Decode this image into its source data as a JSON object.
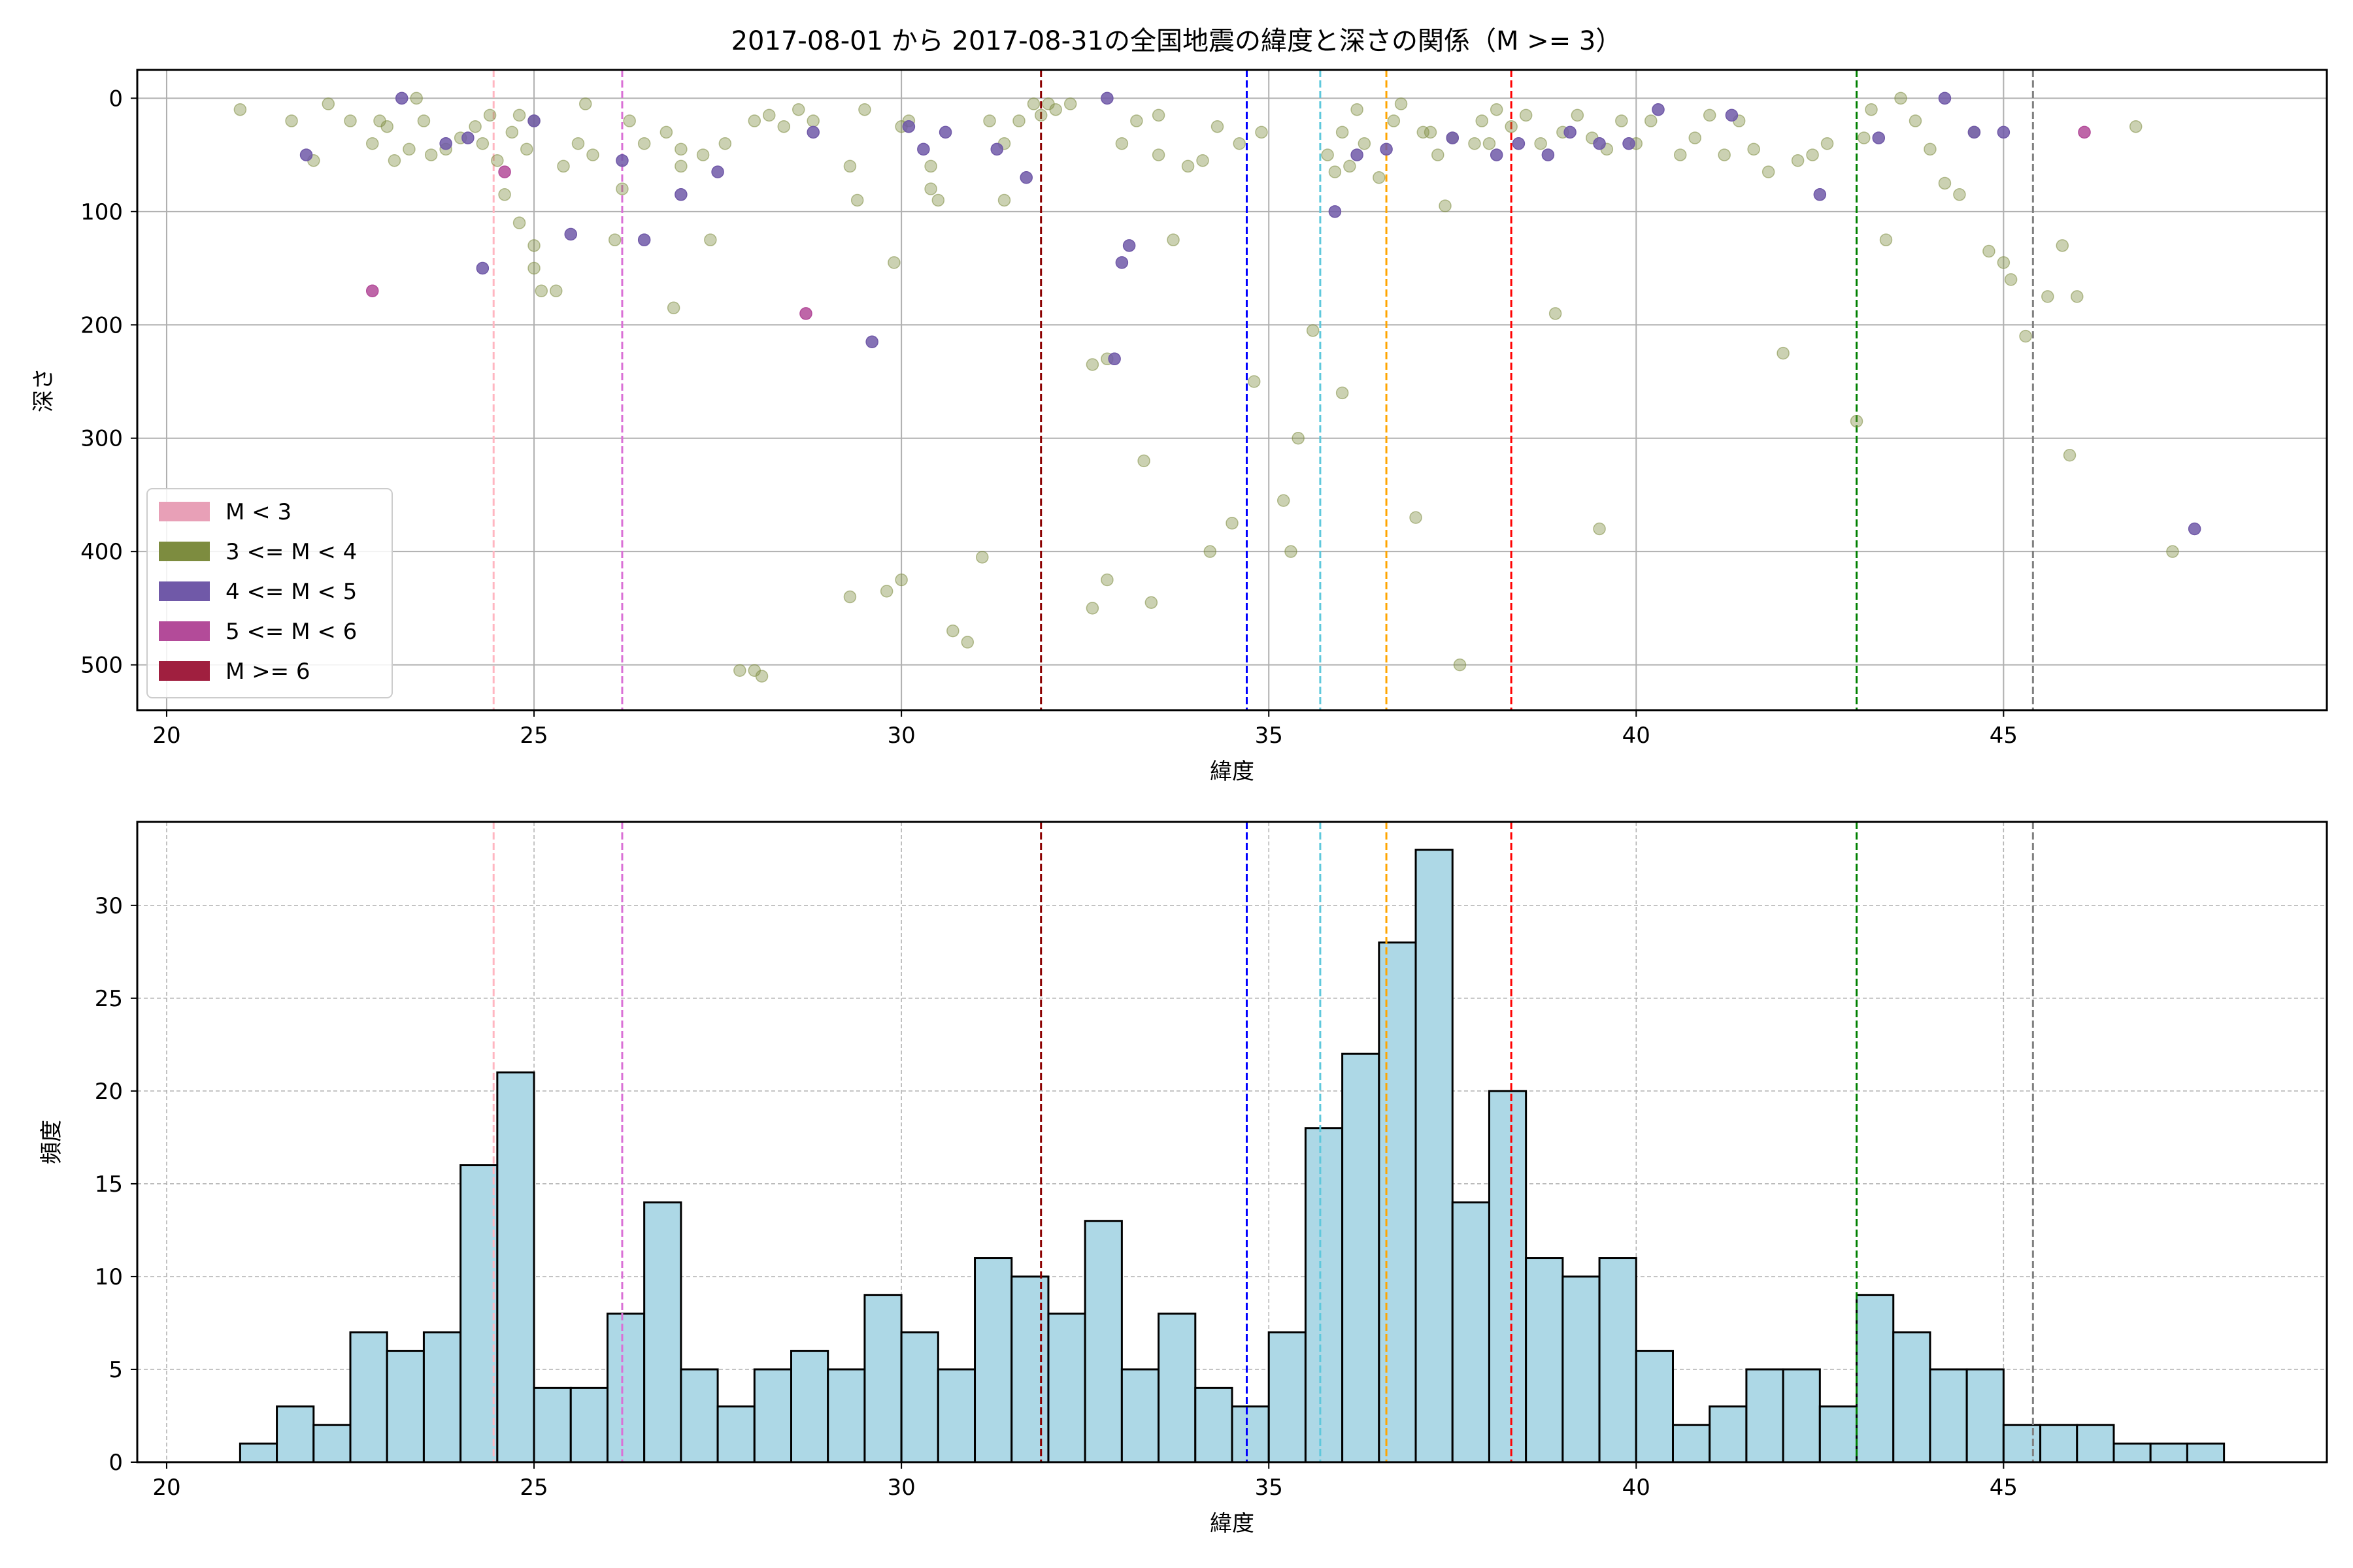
{
  "figure": {
    "title": "2017-08-01 から 2017-08-31の全国地震の緯度と深さの関係（M >= 3）"
  },
  "chart_data": [
    {
      "type": "scatter",
      "xlabel": "緯度",
      "ylabel": "深さ",
      "xlim": [
        19.6,
        49.4
      ],
      "ylim": [
        540,
        -25
      ],
      "y_inverted": true,
      "xticks": [
        20,
        25,
        30,
        35,
        40,
        45
      ],
      "yticks": [
        0,
        100,
        200,
        300,
        400,
        500
      ],
      "grid": true,
      "legend_position": "lower-left",
      "legend": [
        {
          "label": "M < 3",
          "color": "#e8a0b7"
        },
        {
          "label": "3 <= M < 4",
          "color": "#7d8c3f"
        },
        {
          "label": "4 <= M < 5",
          "color": "#7059a8"
        },
        {
          "label": "5 <= M < 6",
          "color": "#b34b99"
        },
        {
          "label": "M >= 6",
          "color": "#a01f3f"
        }
      ],
      "reference_lines": [
        {
          "x": 24.45,
          "color": "#ffb6c1"
        },
        {
          "x": 26.2,
          "color": "#da70d6"
        },
        {
          "x": 31.9,
          "color": "#8b0000"
        },
        {
          "x": 34.7,
          "color": "#0000ff"
        },
        {
          "x": 35.7,
          "color": "#5fc8dc"
        },
        {
          "x": 36.6,
          "color": "#ffa500"
        },
        {
          "x": 38.3,
          "color": "#ff0000"
        },
        {
          "x": 43.0,
          "color": "#008000"
        },
        {
          "x": 45.4,
          "color": "#808080"
        }
      ],
      "series": [
        {
          "magnitude_class": "3 <= M < 4",
          "color": "#7d8c3f",
          "points": [
            [
              21.0,
              10
            ],
            [
              21.7,
              20
            ],
            [
              22.0,
              55
            ],
            [
              22.2,
              5
            ],
            [
              22.5,
              20
            ],
            [
              22.8,
              40
            ],
            [
              22.9,
              20
            ],
            [
              23.0,
              25
            ],
            [
              23.1,
              55
            ],
            [
              23.3,
              45
            ],
            [
              23.4,
              0
            ],
            [
              23.5,
              20
            ],
            [
              23.6,
              50
            ],
            [
              23.8,
              45
            ],
            [
              24.0,
              35
            ],
            [
              24.2,
              25
            ],
            [
              24.3,
              40
            ],
            [
              24.4,
              15
            ],
            [
              24.5,
              55
            ],
            [
              24.6,
              85
            ],
            [
              24.7,
              30
            ],
            [
              24.8,
              15
            ],
            [
              24.9,
              45
            ],
            [
              25.0,
              20
            ],
            [
              24.8,
              110
            ],
            [
              25.0,
              130
            ],
            [
              25.0,
              150
            ],
            [
              25.1,
              170
            ],
            [
              25.3,
              170
            ],
            [
              25.4,
              60
            ],
            [
              25.6,
              40
            ],
            [
              25.7,
              5
            ],
            [
              25.8,
              50
            ],
            [
              26.1,
              125
            ],
            [
              26.2,
              80
            ],
            [
              26.3,
              20
            ],
            [
              26.5,
              40
            ],
            [
              26.8,
              30
            ],
            [
              26.9,
              185
            ],
            [
              27.0,
              60
            ],
            [
              27.0,
              45
            ],
            [
              27.3,
              50
            ],
            [
              27.4,
              125
            ],
            [
              27.6,
              40
            ],
            [
              27.8,
              505
            ],
            [
              28.0,
              505
            ],
            [
              28.1,
              510
            ],
            [
              28.0,
              20
            ],
            [
              28.2,
              15
            ],
            [
              28.4,
              25
            ],
            [
              28.6,
              10
            ],
            [
              28.8,
              20
            ],
            [
              29.3,
              60
            ],
            [
              29.3,
              440
            ],
            [
              29.4,
              90
            ],
            [
              29.5,
              10
            ],
            [
              29.8,
              435
            ],
            [
              29.9,
              145
            ],
            [
              30.0,
              425
            ],
            [
              30.0,
              25
            ],
            [
              30.1,
              20
            ],
            [
              30.4,
              60
            ],
            [
              30.4,
              80
            ],
            [
              30.5,
              90
            ],
            [
              30.7,
              470
            ],
            [
              30.9,
              480
            ],
            [
              31.1,
              405
            ],
            [
              31.2,
              20
            ],
            [
              31.4,
              90
            ],
            [
              31.4,
              40
            ],
            [
              31.6,
              20
            ],
            [
              31.8,
              5
            ],
            [
              31.9,
              15
            ],
            [
              32.0,
              5
            ],
            [
              32.1,
              10
            ],
            [
              32.3,
              5
            ],
            [
              32.6,
              235
            ],
            [
              32.6,
              450
            ],
            [
              32.8,
              230
            ],
            [
              32.8,
              425
            ],
            [
              33.0,
              40
            ],
            [
              33.2,
              20
            ],
            [
              33.3,
              320
            ],
            [
              33.4,
              445
            ],
            [
              33.5,
              50
            ],
            [
              33.5,
              15
            ],
            [
              33.7,
              125
            ],
            [
              33.9,
              60
            ],
            [
              34.1,
              55
            ],
            [
              34.2,
              400
            ],
            [
              34.3,
              25
            ],
            [
              34.5,
              375
            ],
            [
              34.6,
              40
            ],
            [
              34.8,
              250
            ],
            [
              34.9,
              30
            ],
            [
              35.2,
              355
            ],
            [
              35.3,
              400
            ],
            [
              35.4,
              300
            ],
            [
              35.6,
              205
            ],
            [
              35.8,
              50
            ],
            [
              35.9,
              65
            ],
            [
              36.0,
              260
            ],
            [
              36.0,
              30
            ],
            [
              36.1,
              60
            ],
            [
              36.2,
              10
            ],
            [
              36.3,
              40
            ],
            [
              36.5,
              70
            ],
            [
              36.7,
              20
            ],
            [
              36.8,
              5
            ],
            [
              37.0,
              370
            ],
            [
              37.1,
              30
            ],
            [
              37.2,
              30
            ],
            [
              37.3,
              50
            ],
            [
              37.4,
              95
            ],
            [
              37.5,
              35
            ],
            [
              37.6,
              500
            ],
            [
              37.8,
              40
            ],
            [
              37.9,
              20
            ],
            [
              38.0,
              40
            ],
            [
              38.1,
              10
            ],
            [
              38.3,
              25
            ],
            [
              38.5,
              15
            ],
            [
              38.7,
              40
            ],
            [
              38.9,
              190
            ],
            [
              39.0,
              30
            ],
            [
              39.2,
              15
            ],
            [
              39.4,
              35
            ],
            [
              39.5,
              380
            ],
            [
              39.6,
              45
            ],
            [
              39.8,
              20
            ],
            [
              40.0,
              40
            ],
            [
              40.2,
              20
            ],
            [
              40.6,
              50
            ],
            [
              40.8,
              35
            ],
            [
              41.0,
              15
            ],
            [
              41.2,
              50
            ],
            [
              41.4,
              20
            ],
            [
              41.6,
              45
            ],
            [
              41.8,
              65
            ],
            [
              42.0,
              225
            ],
            [
              42.2,
              55
            ],
            [
              42.4,
              50
            ],
            [
              42.6,
              40
            ],
            [
              43.0,
              285
            ],
            [
              43.1,
              35
            ],
            [
              43.2,
              10
            ],
            [
              43.4,
              125
            ],
            [
              43.6,
              0
            ],
            [
              43.8,
              20
            ],
            [
              44.0,
              45
            ],
            [
              44.2,
              75
            ],
            [
              44.4,
              85
            ],
            [
              44.6,
              30
            ],
            [
              44.8,
              135
            ],
            [
              45.0,
              145
            ],
            [
              45.1,
              160
            ],
            [
              45.3,
              210
            ],
            [
              45.6,
              175
            ],
            [
              45.8,
              130
            ],
            [
              45.9,
              315
            ],
            [
              46.0,
              175
            ],
            [
              46.8,
              25
            ],
            [
              47.3,
              400
            ]
          ]
        },
        {
          "magnitude_class": "4 <= M < 5",
          "color": "#7059a8",
          "points": [
            [
              21.9,
              50
            ],
            [
              23.2,
              0
            ],
            [
              23.8,
              40
            ],
            [
              24.1,
              35
            ],
            [
              24.3,
              150
            ],
            [
              25.0,
              20
            ],
            [
              25.5,
              120
            ],
            [
              26.2,
              55
            ],
            [
              26.5,
              125
            ],
            [
              27.0,
              85
            ],
            [
              27.5,
              65
            ],
            [
              28.8,
              30
            ],
            [
              29.6,
              215
            ],
            [
              30.1,
              25
            ],
            [
              30.3,
              45
            ],
            [
              30.6,
              30
            ],
            [
              31.3,
              45
            ],
            [
              31.7,
              70
            ],
            [
              32.8,
              0
            ],
            [
              32.9,
              230
            ],
            [
              33.0,
              145
            ],
            [
              33.1,
              130
            ],
            [
              35.9,
              100
            ],
            [
              36.2,
              50
            ],
            [
              36.6,
              45
            ],
            [
              37.5,
              35
            ],
            [
              38.1,
              50
            ],
            [
              38.4,
              40
            ],
            [
              38.8,
              50
            ],
            [
              39.1,
              30
            ],
            [
              39.5,
              40
            ],
            [
              39.9,
              40
            ],
            [
              40.3,
              10
            ],
            [
              41.3,
              15
            ],
            [
              42.5,
              85
            ],
            [
              43.3,
              35
            ],
            [
              44.2,
              0
            ],
            [
              44.6,
              30
            ],
            [
              45.0,
              30
            ],
            [
              47.6,
              380
            ]
          ]
        },
        {
          "magnitude_class": "5 <= M < 6",
          "color": "#b34b99",
          "points": [
            [
              22.8,
              170
            ],
            [
              24.6,
              65
            ],
            [
              28.7,
              190
            ],
            [
              46.1,
              30
            ]
          ]
        },
        {
          "magnitude_class": "M >= 6",
          "color": "#a01f3f",
          "points": []
        }
      ]
    },
    {
      "type": "bar",
      "xlabel": "緯度",
      "ylabel": "頻度",
      "xlim": [
        19.6,
        49.4
      ],
      "ylim": [
        0,
        34.5
      ],
      "xticks": [
        20,
        25,
        30,
        35,
        40,
        45
      ],
      "yticks": [
        0,
        5,
        10,
        15,
        20,
        25,
        30
      ],
      "grid": true,
      "bar_color": "#add8e6",
      "edge_color": "#000000",
      "bin_width": 0.5,
      "bin_start": 21.0,
      "values": [
        1,
        3,
        2,
        7,
        6,
        7,
        16,
        21,
        4,
        4,
        8,
        14,
        5,
        3,
        5,
        6,
        5,
        9,
        7,
        5,
        11,
        10,
        8,
        13,
        5,
        8,
        4,
        3,
        7,
        18,
        22,
        28,
        33,
        14,
        20,
        11,
        10,
        11,
        6,
        2,
        3,
        5,
        5,
        3,
        9,
        7,
        5,
        5,
        2,
        2,
        2,
        1,
        1,
        1
      ],
      "reference_lines": [
        {
          "x": 24.45,
          "color": "#ffb6c1"
        },
        {
          "x": 26.2,
          "color": "#da70d6"
        },
        {
          "x": 31.9,
          "color": "#8b0000"
        },
        {
          "x": 34.7,
          "color": "#0000ff"
        },
        {
          "x": 35.7,
          "color": "#5fc8dc"
        },
        {
          "x": 36.6,
          "color": "#ffa500"
        },
        {
          "x": 38.3,
          "color": "#ff0000"
        },
        {
          "x": 43.0,
          "color": "#008000"
        },
        {
          "x": 45.4,
          "color": "#808080"
        }
      ]
    }
  ]
}
